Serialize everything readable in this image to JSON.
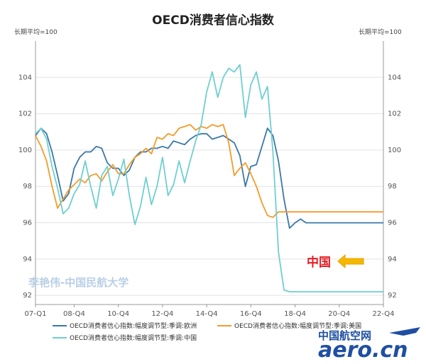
{
  "chart_data": {
    "type": "line",
    "title": "OECD消费者信心指数",
    "unit_left": "长期平均=100",
    "unit_right": "长期平均=100",
    "ylim": [
      91.5,
      106
    ],
    "yticks": [
      92,
      94,
      96,
      98,
      100,
      102,
      104
    ],
    "x_tick_labels": [
      "07-Q1",
      "08-Q4",
      "10-Q4",
      "12-Q4",
      "14-Q4",
      "16-Q4",
      "18-Q4",
      "20-Q4",
      "22-Q4"
    ],
    "x_tick_positions": [
      0,
      7,
      15,
      23,
      31,
      39,
      47,
      55,
      63
    ],
    "x_start": 0,
    "x_end": 63,
    "series": [
      {
        "name": "OECD消费者信心指数:幅度调节型:季调:欧洲",
        "color": "#3b78a8",
        "values": [
          100.8,
          101.2,
          100.9,
          99.9,
          98.6,
          97.2,
          97.6,
          99.0,
          99.6,
          99.9,
          99.9,
          100.2,
          100.1,
          99.3,
          99.0,
          99.0,
          98.6,
          98.9,
          99.6,
          99.9,
          99.9,
          100.1,
          100.1,
          100.2,
          100.1,
          100.5,
          100.4,
          100.3,
          100.6,
          100.8,
          100.9,
          100.9,
          100.6,
          100.7,
          100.8,
          100.6,
          100.4,
          99.7,
          98.0,
          99.1,
          99.2,
          100.2,
          101.2,
          100.8,
          99.4,
          97.3,
          95.7,
          96.0,
          96.2,
          96.0,
          96.0,
          96.0,
          96.0,
          96.0,
          96.0,
          96.0,
          96.0,
          96.0,
          96.0,
          96.0,
          96.0,
          96.0,
          96.0,
          96.0
        ]
      },
      {
        "name": "OECD消费者信心指数:幅度调节型:季调:美国",
        "color": "#f39c2b",
        "values": [
          100.8,
          100.2,
          99.4,
          98.0,
          96.8,
          97.3,
          97.8,
          98.1,
          98.4,
          98.2,
          98.6,
          98.7,
          98.3,
          98.8,
          99.2,
          98.7,
          98.7,
          99.2,
          99.6,
          99.8,
          100.1,
          99.8,
          100.7,
          100.6,
          100.9,
          100.8,
          101.2,
          101.3,
          101.4,
          101.1,
          101.3,
          101.2,
          101.4,
          101.3,
          101.4,
          100.4,
          98.6,
          99.0,
          99.3,
          98.7,
          98.0,
          97.1,
          96.4,
          96.3,
          96.6,
          96.6,
          96.6,
          96.6,
          96.6,
          96.6,
          96.6,
          96.6,
          96.6,
          96.6,
          96.6,
          96.6,
          96.6,
          96.6,
          96.6,
          96.6,
          96.6,
          96.6,
          96.6,
          96.6
        ]
      },
      {
        "name": "OECD消费者信心指数:幅度调节型:季调:中国",
        "color": "#6fcfd0",
        "values": [
          100.9,
          101.2,
          100.6,
          99.1,
          97.9,
          96.5,
          96.8,
          97.6,
          98.1,
          99.4,
          98.0,
          96.8,
          98.6,
          99.1,
          97.5,
          98.4,
          99.5,
          97.5,
          95.9,
          96.9,
          98.5,
          97.0,
          98.0,
          99.6,
          97.5,
          98.1,
          99.4,
          98.2,
          99.4,
          100.5,
          101.4,
          103.2,
          104.3,
          102.9,
          104.0,
          104.5,
          104.3,
          104.7,
          101.8,
          103.6,
          104.3,
          102.8,
          103.5,
          99.9,
          94.4,
          92.3,
          92.2,
          92.2,
          92.2,
          92.2,
          92.2,
          92.2,
          92.2,
          92.2,
          92.2,
          92.2,
          92.2,
          92.2,
          92.2,
          92.2,
          92.2,
          92.2,
          92.2,
          92.2
        ]
      }
    ],
    "annotation": "中国",
    "watermark": "李艳伟-中国民航大学"
  },
  "logo": {
    "cn": "中国航空网",
    "en": "aero.cn"
  }
}
